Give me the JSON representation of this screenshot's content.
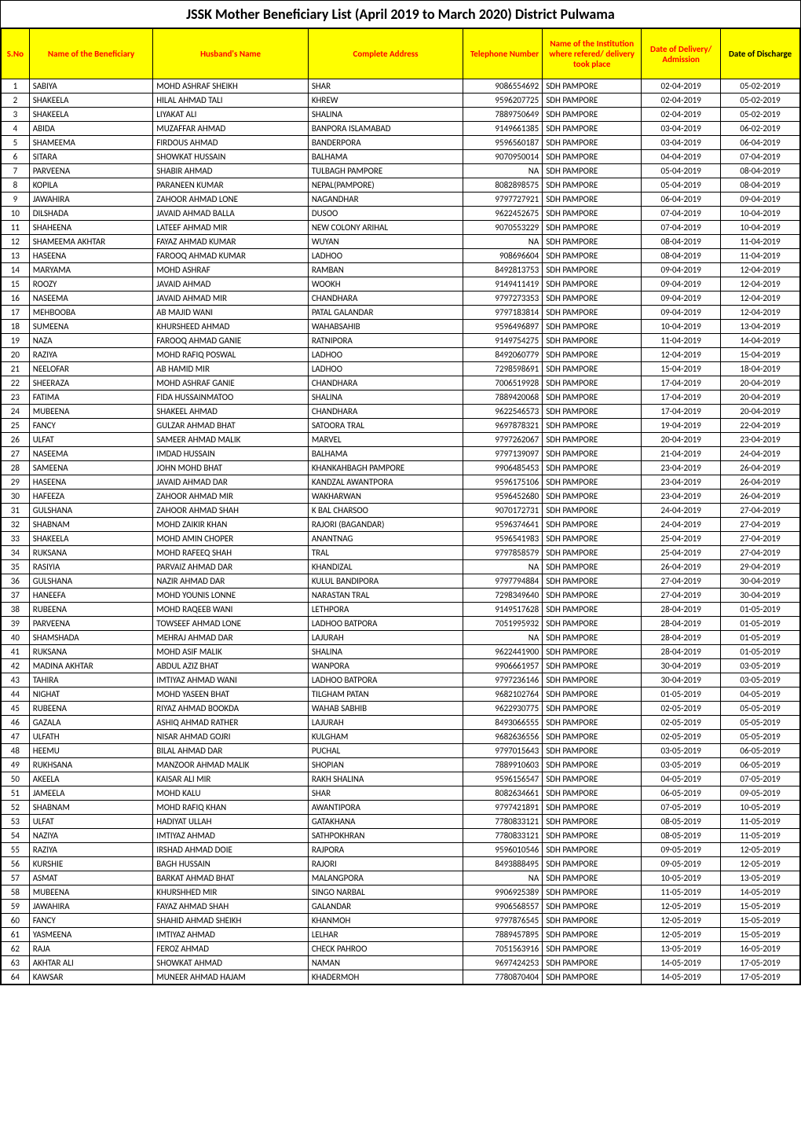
{
  "title": "JSSK Mother Beneficiary List  (April 2019 to March 2020) District Pulwama",
  "headers": {
    "sno": "S.No",
    "name": "Name of the Beneficiary",
    "husband": "Husband's Name",
    "addr": "Complete Address",
    "tel": "Telephone Number",
    "inst": "Name of the Institution where refered/ delivery took place",
    "date1": "Date of Delivery/ Admission",
    "date2": "Date of Discharge"
  },
  "header_style": {
    "yellow_bg": "#ffff00",
    "red_text": "#ff0000",
    "black_text": "#000000"
  },
  "rows": [
    {
      "sno": "1",
      "name": "SABIYA",
      "husband": "MOHD ASHRAF SHEIKH",
      "addr": "SHAR",
      "tel": "9086554692",
      "inst": "SDH PAMPORE",
      "date1": "02-04-2019",
      "date2": "05-02-2019"
    },
    {
      "sno": "2",
      "name": "SHAKEELA",
      "husband": "HILAL AHMAD TALI",
      "addr": "KHREW",
      "tel": "9596207725",
      "inst": "SDH PAMPORE",
      "date1": "02-04-2019",
      "date2": "05-02-2019"
    },
    {
      "sno": "3",
      "name": "SHAKEELA",
      "husband": "LIYAKAT ALI",
      "addr": "SHALINA",
      "tel": "7889750649",
      "inst": "SDH PAMPORE",
      "date1": "02-04-2019",
      "date2": "05-02-2019"
    },
    {
      "sno": "4",
      "name": "ABIDA",
      "husband": "MUZAFFAR AHMAD",
      "addr": "BANPORA ISLAMABAD",
      "tel": "9149661385",
      "inst": "SDH PAMPORE",
      "date1": "03-04-2019",
      "date2": "06-02-2019"
    },
    {
      "sno": "5",
      "name": "SHAMEEMA",
      "husband": "FIRDOUS AHMAD",
      "addr": "BANDERPORA",
      "tel": "9596560187",
      "inst": "SDH PAMPORE",
      "date1": "03-04-2019",
      "date2": "06-04-2019"
    },
    {
      "sno": "6",
      "name": "SITARA",
      "husband": "SHOWKAT HUSSAIN",
      "addr": "BALHAMA",
      "tel": "9070950014",
      "inst": "SDH PAMPORE",
      "date1": "04-04-2019",
      "date2": "07-04-2019"
    },
    {
      "sno": "7",
      "name": "PARVEENA",
      "husband": "SHABIR AHMAD",
      "addr": "TULBAGH PAMPORE",
      "tel": "NA",
      "inst": "SDH PAMPORE",
      "date1": "05-04-2019",
      "date2": "08-04-2019"
    },
    {
      "sno": "8",
      "name": "KOPILA",
      "husband": "PARANEEN KUMAR",
      "addr": "NEPAL(PAMPORE)",
      "tel": "8082898575",
      "inst": "SDH PAMPORE",
      "date1": "05-04-2019",
      "date2": "08-04-2019"
    },
    {
      "sno": "9",
      "name": "JAWAHIRA",
      "husband": "ZAHOOR AHMAD LONE",
      "addr": "NAGANDHAR",
      "tel": "9797727921",
      "inst": "SDH PAMPORE",
      "date1": "06-04-2019",
      "date2": "09-04-2019"
    },
    {
      "sno": "10",
      "name": "DILSHADA",
      "husband": "JAVAID AHMAD BALLA",
      "addr": "DUSOO",
      "tel": "9622452675",
      "inst": "SDH PAMPORE",
      "date1": "07-04-2019",
      "date2": "10-04-2019"
    },
    {
      "sno": "11",
      "name": "SHAHEENA",
      "husband": "LATEEF AHMAD MIR",
      "addr": "NEW COLONY ARIHAL",
      "tel": "9070553229",
      "inst": "SDH PAMPORE",
      "date1": "07-04-2019",
      "date2": "10-04-2019"
    },
    {
      "sno": "12",
      "name": "SHAMEEMA AKHTAR",
      "husband": "FAYAZ AHMAD KUMAR",
      "addr": "WUYAN",
      "tel": "NA",
      "inst": "SDH PAMPORE",
      "date1": "08-04-2019",
      "date2": "11-04-2019"
    },
    {
      "sno": "13",
      "name": "HASEENA",
      "husband": "FAROOQ AHMAD KUMAR",
      "addr": "LADHOO",
      "tel": "908696604",
      "inst": "SDH PAMPORE",
      "date1": "08-04-2019",
      "date2": "11-04-2019"
    },
    {
      "sno": "14",
      "name": "MARYAMA",
      "husband": "MOHD ASHRAF",
      "addr": "RAMBAN",
      "tel": "8492813753",
      "inst": "SDH PAMPORE",
      "date1": "09-04-2019",
      "date2": "12-04-2019"
    },
    {
      "sno": "15",
      "name": "ROOZY",
      "husband": "JAVAID AHMAD",
      "addr": "WOOKH",
      "tel": "9149411419",
      "inst": "SDH PAMPORE",
      "date1": "09-04-2019",
      "date2": "12-04-2019"
    },
    {
      "sno": "16",
      "name": "NASEEMA",
      "husband": "JAVAID AHMAD MIR",
      "addr": "CHANDHARA",
      "tel": "9797273353",
      "inst": "SDH PAMPORE",
      "date1": "09-04-2019",
      "date2": "12-04-2019"
    },
    {
      "sno": "17",
      "name": "MEHBOOBA",
      "husband": "AB MAJID WANI",
      "addr": "PATAL GALANDAR",
      "tel": "9797183814",
      "inst": "SDH PAMPORE",
      "date1": "09-04-2019",
      "date2": "12-04-2019"
    },
    {
      "sno": "18",
      "name": "SUMEENA",
      "husband": "KHURSHEED AHMAD",
      "addr": "WAHABSAHIB",
      "tel": "9596496897",
      "inst": "SDH PAMPORE",
      "date1": "10-04-2019",
      "date2": "13-04-2019"
    },
    {
      "sno": "19",
      "name": "NAZA",
      "husband": "FAROOQ AHMAD GANIE",
      "addr": "RATNIPORA",
      "tel": "9149754275",
      "inst": "SDH PAMPORE",
      "date1": "11-04-2019",
      "date2": "14-04-2019"
    },
    {
      "sno": "20",
      "name": "RAZIYA",
      "husband": "MOHD RAFIQ POSWAL",
      "addr": "LADHOO",
      "tel": "8492060779",
      "inst": "SDH PAMPORE",
      "date1": "12-04-2019",
      "date2": "15-04-2019"
    },
    {
      "sno": "21",
      "name": "NEELOFAR",
      "husband": "AB HAMID MIR",
      "addr": "LADHOO",
      "tel": "7298598691",
      "inst": "SDH PAMPORE",
      "date1": "15-04-2019",
      "date2": "18-04-2019"
    },
    {
      "sno": "22",
      "name": "SHEERAZA",
      "husband": "MOHD ASHRAF GANIE",
      "addr": "CHANDHARA",
      "tel": "7006519928",
      "inst": "SDH PAMPORE",
      "date1": "17-04-2019",
      "date2": "20-04-2019"
    },
    {
      "sno": "23",
      "name": "FATIMA",
      "husband": "FIDA HUSSAINMATOO",
      "addr": "SHALINA",
      "tel": "7889420068",
      "inst": "SDH PAMPORE",
      "date1": "17-04-2019",
      "date2": "20-04-2019"
    },
    {
      "sno": "24",
      "name": "MUBEENA",
      "husband": "SHAKEEL AHMAD",
      "addr": "CHANDHARA",
      "tel": "9622546573",
      "inst": "SDH PAMPORE",
      "date1": "17-04-2019",
      "date2": "20-04-2019"
    },
    {
      "sno": "25",
      "name": "FANCY",
      "husband": "GULZAR AHMAD BHAT",
      "addr": "SATOORA TRAL",
      "tel": "9697878321",
      "inst": "SDH PAMPORE",
      "date1": "19-04-2019",
      "date2": "22-04-2019"
    },
    {
      "sno": "26",
      "name": "ULFAT",
      "husband": "SAMEER AHMAD MALIK",
      "addr": "MARVEL",
      "tel": "9797262067",
      "inst": "SDH PAMPORE",
      "date1": "20-04-2019",
      "date2": "23-04-2019"
    },
    {
      "sno": "27",
      "name": "NASEEMA",
      "husband": "IMDAD HUSSAIN",
      "addr": "BALHAMA",
      "tel": "9797139097",
      "inst": "SDH PAMPORE",
      "date1": "21-04-2019",
      "date2": "24-04-2019"
    },
    {
      "sno": "28",
      "name": "SAMEENA",
      "husband": "JOHN MOHD BHAT",
      "addr": "KHANKAHBAGH PAMPORE",
      "tel": "9906485453",
      "inst": "SDH PAMPORE",
      "date1": "23-04-2019",
      "date2": "26-04-2019"
    },
    {
      "sno": "29",
      "name": "HASEENA",
      "husband": "JAVAID AHMAD DAR",
      "addr": "KANDZAL AWANTPORA",
      "tel": "9596175106",
      "inst": "SDH PAMPORE",
      "date1": "23-04-2019",
      "date2": "26-04-2019"
    },
    {
      "sno": "30",
      "name": "HAFEEZA",
      "husband": "ZAHOOR AHMAD MIR",
      "addr": "WAKHARWAN",
      "tel": "9596452680",
      "inst": "SDH PAMPORE",
      "date1": "23-04-2019",
      "date2": "26-04-2019"
    },
    {
      "sno": "31",
      "name": "GULSHANA",
      "husband": "ZAHOOR AHMAD SHAH",
      "addr": "K BAL CHARSOO",
      "tel": "9070172731",
      "inst": "SDH PAMPORE",
      "date1": "24-04-2019",
      "date2": "27-04-2019"
    },
    {
      "sno": "32",
      "name": "SHABNAM",
      "husband": "MOHD ZAIKIR KHAN",
      "addr": "RAJORI (BAGANDAR)",
      "tel": "9596374641",
      "inst": "SDH PAMPORE",
      "date1": "24-04-2019",
      "date2": "27-04-2019"
    },
    {
      "sno": "33",
      "name": "SHAKEELA",
      "husband": "MOHD AMIN CHOPER",
      "addr": "ANANTNAG",
      "tel": "9596541983",
      "inst": "SDH PAMPORE",
      "date1": "25-04-2019",
      "date2": "27-04-2019"
    },
    {
      "sno": "34",
      "name": "RUKSANA",
      "husband": "MOHD RAFEEQ SHAH",
      "addr": "TRAL",
      "tel": "9797858579",
      "inst": "SDH PAMPORE",
      "date1": "25-04-2019",
      "date2": "27-04-2019"
    },
    {
      "sno": "35",
      "name": "RASIYIA",
      "husband": "PARVAIZ AHMAD DAR",
      "addr": "KHANDIZAL",
      "tel": "NA",
      "inst": "SDH PAMPORE",
      "date1": "26-04-2019",
      "date2": "29-04-2019"
    },
    {
      "sno": "36",
      "name": "GULSHANA",
      "husband": "NAZIR AHMAD DAR",
      "addr": "KULUL BANDIPORA",
      "tel": "9797794884",
      "inst": "SDH PAMPORE",
      "date1": "27-04-2019",
      "date2": "30-04-2019"
    },
    {
      "sno": "37",
      "name": "HANEEFA",
      "husband": "MOHD YOUNIS LONNE",
      "addr": "NARASTAN TRAL",
      "tel": "7298349640",
      "inst": "SDH PAMPORE",
      "date1": "27-04-2019",
      "date2": "30-04-2019"
    },
    {
      "sno": "38",
      "name": "RUBEENA",
      "husband": "MOHD RAQEEB WANI",
      "addr": "LETHPORA",
      "tel": "9149517628",
      "inst": "SDH PAMPORE",
      "date1": "28-04-2019",
      "date2": "01-05-2019"
    },
    {
      "sno": "39",
      "name": "PARVEENA",
      "husband": "TOWSEEF AHMAD LONE",
      "addr": "LADHOO BATPORA",
      "tel": "7051995932",
      "inst": "SDH PAMPORE",
      "date1": "28-04-2019",
      "date2": "01-05-2019"
    },
    {
      "sno": "40",
      "name": "SHAMSHADA",
      "husband": "MEHRAJ AHMAD DAR",
      "addr": "LAJURAH",
      "tel": "NA",
      "inst": "SDH PAMPORE",
      "date1": "28-04-2019",
      "date2": "01-05-2019"
    },
    {
      "sno": "41",
      "name": "RUKSANA",
      "husband": "MOHD ASIF MALIK",
      "addr": "SHALINA",
      "tel": "9622441900",
      "inst": "SDH PAMPORE",
      "date1": "28-04-2019",
      "date2": "01-05-2019"
    },
    {
      "sno": "42",
      "name": "MADINA AKHTAR",
      "husband": "ABDUL AZIZ BHAT",
      "addr": "WANPORA",
      "tel": "9906661957",
      "inst": "SDH PAMPORE",
      "date1": "30-04-2019",
      "date2": "03-05-2019"
    },
    {
      "sno": "43",
      "name": "TAHIRA",
      "husband": "IMTIYAZ AHMAD WANI",
      "addr": "LADHOO BATPORA",
      "tel": "9797236146",
      "inst": "SDH PAMPORE",
      "date1": "30-04-2019",
      "date2": "03-05-2019"
    },
    {
      "sno": "44",
      "name": "NIGHAT",
      "husband": "MOHD YASEEN BHAT",
      "addr": "TILGHAM PATAN",
      "tel": "9682102764",
      "inst": "SDH PAMPORE",
      "date1": "01-05-2019",
      "date2": "04-05-2019"
    },
    {
      "sno": "45",
      "name": "RUBEENA",
      "husband": "RIYAZ AHMAD BOOKDA",
      "addr": "WAHAB SABHIB",
      "tel": "9622930775",
      "inst": "SDH PAMPORE",
      "date1": "02-05-2019",
      "date2": "05-05-2019"
    },
    {
      "sno": "46",
      "name": "GAZALA",
      "husband": "ASHIQ AHMAD RATHER",
      "addr": "LAJURAH",
      "tel": "8493066555",
      "inst": "SDH PAMPORE",
      "date1": "02-05-2019",
      "date2": "05-05-2019"
    },
    {
      "sno": "47",
      "name": "ULFATH",
      "husband": "NISAR AHMAD GOJRI",
      "addr": "KULGHAM",
      "tel": "9682636556",
      "inst": "SDH PAMPORE",
      "date1": "02-05-2019",
      "date2": "05-05-2019"
    },
    {
      "sno": "48",
      "name": "HEEMU",
      "husband": "BILAL AHMAD DAR",
      "addr": "PUCHAL",
      "tel": "9797015643",
      "inst": "SDH PAMPORE",
      "date1": "03-05-2019",
      "date2": "06-05-2019"
    },
    {
      "sno": "49",
      "name": "RUKHSANA",
      "husband": "MANZOOR AHMAD MALIK",
      "addr": "SHOPIAN",
      "tel": "7889910603",
      "inst": "SDH PAMPORE",
      "date1": "03-05-2019",
      "date2": "06-05-2019"
    },
    {
      "sno": "50",
      "name": "AKEELA",
      "husband": "KAISAR ALI MIR",
      "addr": "RAKH SHALINA",
      "tel": "9596156547",
      "inst": "SDH PAMPORE",
      "date1": "04-05-2019",
      "date2": "07-05-2019"
    },
    {
      "sno": "51",
      "name": "JAMEELA",
      "husband": "MOHD KALU",
      "addr": "SHAR",
      "tel": "8082634661",
      "inst": "SDH PAMPORE",
      "date1": "06-05-2019",
      "date2": "09-05-2019"
    },
    {
      "sno": "52",
      "name": "SHABNAM",
      "husband": "MOHD RAFIQ KHAN",
      "addr": "AWANTIPORA",
      "tel": "9797421891",
      "inst": "SDH PAMPORE",
      "date1": "07-05-2019",
      "date2": "10-05-2019"
    },
    {
      "sno": "53",
      "name": "ULFAT",
      "husband": "HADIYAT ULLAH",
      "addr": "GATAKHANA",
      "tel": "7780833121",
      "inst": "SDH PAMPORE",
      "date1": "08-05-2019",
      "date2": "11-05-2019"
    },
    {
      "sno": "54",
      "name": "NAZIYA",
      "husband": "IMTIYAZ AHMAD",
      "addr": "SATHPOKHRAN",
      "tel": "7780833121",
      "inst": "SDH PAMPORE",
      "date1": "08-05-2019",
      "date2": "11-05-2019"
    },
    {
      "sno": "55",
      "name": "RAZIYA",
      "husband": "IRSHAD AHMAD DOIE",
      "addr": "RAJPORA",
      "tel": "9596010546",
      "inst": "SDH PAMPORE",
      "date1": "09-05-2019",
      "date2": "12-05-2019"
    },
    {
      "sno": "56",
      "name": "KURSHIE",
      "husband": "BAGH HUSSAIN",
      "addr": "RAJORI",
      "tel": "8493888495",
      "inst": "SDH PAMPORE",
      "date1": "09-05-2019",
      "date2": "12-05-2019"
    },
    {
      "sno": "57",
      "name": "ASMAT",
      "husband": "BARKAT AHMAD BHAT",
      "addr": "MALANGPORA",
      "tel": "NA",
      "inst": "SDH PAMPORE",
      "date1": "10-05-2019",
      "date2": "13-05-2019"
    },
    {
      "sno": "58",
      "name": "MUBEENA",
      "husband": "KHURSHHED MIR",
      "addr": "SINGO NARBAL",
      "tel": "9906925389",
      "inst": "SDH PAMPORE",
      "date1": "11-05-2019",
      "date2": "14-05-2019"
    },
    {
      "sno": "59",
      "name": "JAWAHIRA",
      "husband": "FAYAZ AHMAD SHAH",
      "addr": "GALANDAR",
      "tel": "9906568557",
      "inst": "SDH PAMPORE",
      "date1": "12-05-2019",
      "date2": "15-05-2019"
    },
    {
      "sno": "60",
      "name": "FANCY",
      "husband": "SHAHID AHMAD SHEIKH",
      "addr": "KHANMOH",
      "tel": "9797876545",
      "inst": "SDH PAMPORE",
      "date1": "12-05-2019",
      "date2": "15-05-2019"
    },
    {
      "sno": "61",
      "name": "YASMEENA",
      "husband": "IMTIYAZ AHMAD",
      "addr": "LELHAR",
      "tel": "7889457895",
      "inst": "SDH PAMPORE",
      "date1": "12-05-2019",
      "date2": "15-05-2019"
    },
    {
      "sno": "62",
      "name": "RAJA",
      "husband": "FEROZ AHMAD",
      "addr": "CHECK PAHROO",
      "tel": "7051563916",
      "inst": "SDH PAMPORE",
      "date1": "13-05-2019",
      "date2": "16-05-2019"
    },
    {
      "sno": "63",
      "name": "AKHTAR ALI",
      "husband": "SHOWKAT AHMAD",
      "addr": "NAMAN",
      "tel": "9697424253",
      "inst": "SDH PAMPORE",
      "date1": "14-05-2019",
      "date2": "17-05-2019"
    },
    {
      "sno": "64",
      "name": "KAWSAR",
      "husband": "MUNEER AHMAD HAJAM",
      "addr": "KHADERMOH",
      "tel": "7780870404",
      "inst": "SDH PAMPORE",
      "date1": "14-05-2019",
      "date2": "17-05-2019"
    }
  ]
}
